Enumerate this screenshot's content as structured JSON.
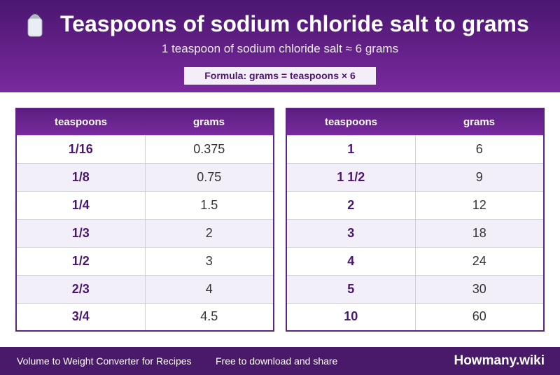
{
  "header": {
    "title": "Teaspoons of sodium chloride salt to grams",
    "subtitle": "1 teaspoon of sodium chloride salt ≈ 6 grams",
    "formula": "Formula: grams = teaspoons × 6"
  },
  "tables": [
    {
      "columns": [
        "teaspoons",
        "grams"
      ],
      "rows": [
        [
          "1/16",
          "0.375"
        ],
        [
          "1/8",
          "0.75"
        ],
        [
          "1/4",
          "1.5"
        ],
        [
          "1/3",
          "2"
        ],
        [
          "1/2",
          "3"
        ],
        [
          "2/3",
          "4"
        ],
        [
          "3/4",
          "4.5"
        ]
      ]
    },
    {
      "columns": [
        "teaspoons",
        "grams"
      ],
      "rows": [
        [
          "1",
          "6"
        ],
        [
          "1 1/2",
          "9"
        ],
        [
          "2",
          "12"
        ],
        [
          "3",
          "18"
        ],
        [
          "4",
          "24"
        ],
        [
          "5",
          "30"
        ],
        [
          "10",
          "60"
        ]
      ]
    }
  ],
  "footer": {
    "left": "Volume to Weight Converter for Recipes",
    "middle": "Free to download and share",
    "brand": "Howmany.wiki"
  }
}
